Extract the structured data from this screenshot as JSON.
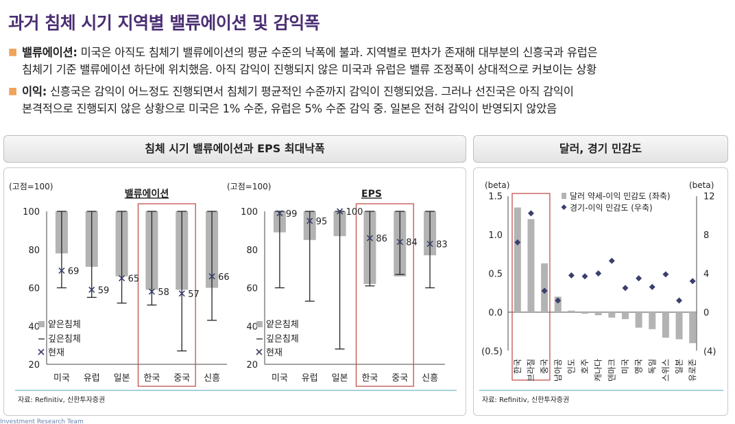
{
  "page": {
    "title": "과거 침체 시기 지역별 밸류에이션 및 감익폭",
    "bullets": [
      {
        "lead": "밸류에이션:",
        "line1": " 미국은 아직도 침체기 밸류에이션의 평균 수준의 낙폭에 불과. 지역별로 편차가 존재해 대부분의 신흥국과 유럽은",
        "line2": "침체기 기준 밸류에이션 하단에 위치했음. 아직 감익이 진행되지 않은 미국과 유럽은 밸류 조정폭이 상대적으로 커보이는 상황"
      },
      {
        "lead": "이익:",
        "line1": " 신흥국은 감익이 어느정도 진행되면서 침체기 평균적인 수준까지 감익이 진행되었음. 그러나 선진국은 아직 감익이",
        "line2": "본격적으로 진행되지 않은 상황으로 미국은 1% 수준, 유럽은 5% 수준 감익 중. 일본은 전혀 감익이 반영되지 않았음"
      }
    ],
    "left_panel_title": "침체 시기 밸류에이션과 EPS 최대낙폭",
    "right_panel_title": "달러, 경기 민감도",
    "source_left": "자료: Refinitiv, 신한투자증권",
    "source_right": "자료: Refinitiv, 신한투자증권",
    "footer_cut": "Investment Research Team"
  },
  "colors": {
    "title": "#4a2e72",
    "bullet_marker": "#f0a35a",
    "bar_gray": "#b3b3b3",
    "highlight_box": "#c0504d",
    "marker_navy": "#3a3f6b",
    "source_rule": "#6fb8c6"
  },
  "chart_data": [
    {
      "type": "bar",
      "title": "밸류에이션",
      "unit_label": "(고점=100)",
      "categories": [
        "미국",
        "유럽",
        "일본",
        "한국",
        "중국",
        "신흥"
      ],
      "ylim": [
        20,
        100
      ],
      "yticks": [
        20,
        40,
        60,
        80,
        100
      ],
      "shallow_recession_bar": [
        [
          78,
          100
        ],
        [
          71,
          100
        ],
        [
          66,
          100
        ],
        [
          59,
          100
        ],
        [
          59,
          100
        ],
        [
          60,
          100
        ]
      ],
      "deep_recession_range": [
        [
          60,
          100
        ],
        [
          55,
          100
        ],
        [
          52,
          100
        ],
        [
          51,
          100
        ],
        [
          27,
          100
        ],
        [
          43,
          100
        ]
      ],
      "current": [
        69,
        59,
        65,
        58,
        57,
        66
      ],
      "current_labels": [
        "69",
        "59",
        "65",
        "58",
        "57",
        "66"
      ],
      "legend": [
        "얕은침체",
        "깊은침체",
        "현재"
      ],
      "highlight_categories": [
        "한국",
        "중국"
      ]
    },
    {
      "type": "bar",
      "title": "EPS",
      "unit_label": "(고점=100)",
      "categories": [
        "미국",
        "유럽",
        "일본",
        "한국",
        "중국",
        "신흥"
      ],
      "ylim": [
        20,
        100
      ],
      "yticks": [
        20,
        40,
        60,
        80,
        100
      ],
      "shallow_recession_bar": [
        [
          89,
          100
        ],
        [
          85,
          100
        ],
        [
          87,
          100
        ],
        [
          62,
          100
        ],
        [
          66,
          100
        ],
        [
          77,
          100
        ]
      ],
      "deep_recession_range": [
        [
          60,
          100
        ],
        [
          53,
          100
        ],
        [
          28,
          100
        ],
        [
          61,
          100
        ],
        [
          67,
          100
        ],
        [
          60,
          100
        ]
      ],
      "current": [
        99,
        95,
        100,
        86,
        84,
        83
      ],
      "current_labels": [
        "99",
        "95",
        "100",
        "86",
        "84",
        "83"
      ],
      "legend": [
        "얕은침체",
        "깊은침체",
        "현재"
      ],
      "highlight_categories": [
        "한국",
        "중국"
      ]
    },
    {
      "type": "bar",
      "title": "",
      "categories": [
        "한국",
        "브라질",
        "중국",
        "남아공",
        "인도",
        "호주",
        "캐나다",
        "덴마크",
        "미국",
        "영국",
        "독일",
        "스위스",
        "일본",
        "유로존"
      ],
      "y_left_label": "(beta)",
      "y_right_label": "(beta)",
      "ylim_left": [
        -0.5,
        1.5
      ],
      "yticks_left": [
        "(0.5)",
        "0.0",
        "0.5",
        "1.0",
        "1.5"
      ],
      "ylim_right": [
        -4,
        12
      ],
      "yticks_right": [
        "(4)",
        "0",
        "4",
        "8",
        "12"
      ],
      "series": [
        {
          "name": "달러 약세-이익 민감도 (좌축)",
          "type": "bar",
          "axis": "left",
          "values": [
            1.35,
            1.2,
            0.63,
            0.2,
            0.02,
            -0.02,
            -0.04,
            -0.07,
            -0.09,
            -0.2,
            -0.22,
            -0.33,
            -0.35,
            -0.4
          ]
        },
        {
          "name": "경기-이익 민감도 (우축)",
          "type": "scatter",
          "axis": "right",
          "values": [
            7.2,
            10.2,
            2.2,
            1.2,
            3.8,
            3.7,
            4.0,
            5.3,
            2.5,
            3.5,
            2.6,
            3.9,
            1.2,
            3.2
          ]
        }
      ],
      "highlight_categories": [
        "한국",
        "브라질",
        "중국"
      ]
    }
  ]
}
